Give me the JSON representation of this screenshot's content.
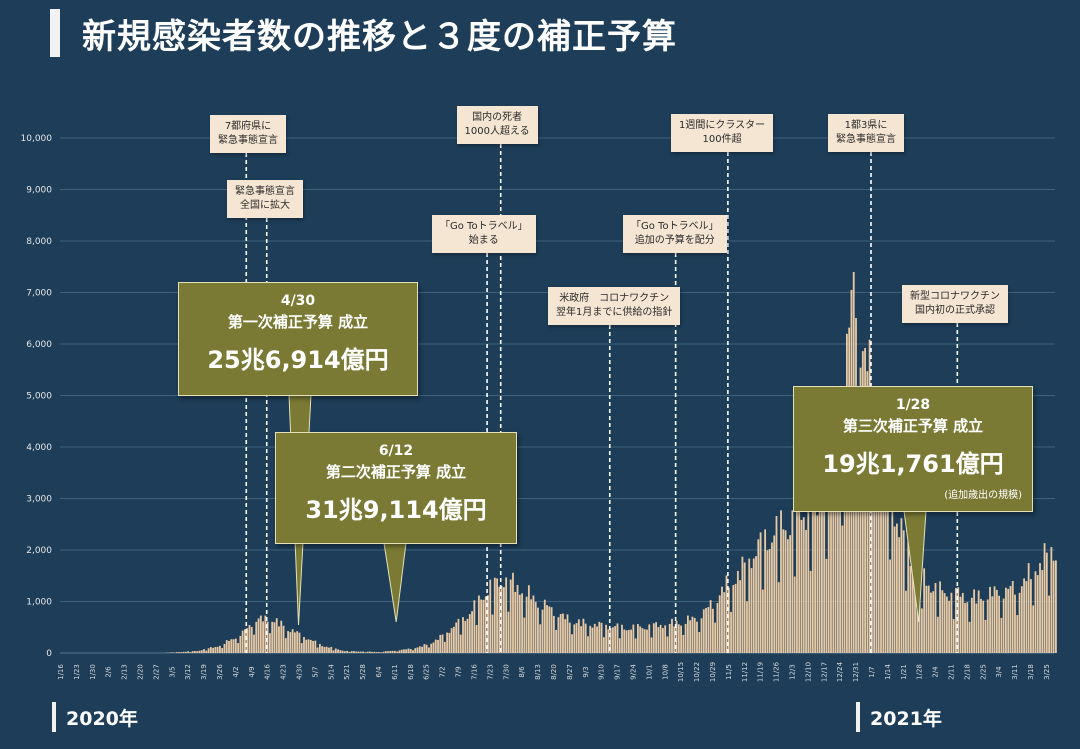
{
  "title": "新規感染者数の推移と３度の補正予算",
  "colors": {
    "background": "#1d3d58",
    "bars": "#e8c9a4",
    "grid": "#4d6e88",
    "note_bg": "#f5e6d3",
    "callout_bg": "#7a7a35"
  },
  "chart_data": {
    "type": "bar",
    "ylim": [
      0,
      10000
    ],
    "yticks": [
      "0",
      "1,000",
      "2,000",
      "3,000",
      "4,000",
      "5,000",
      "6,000",
      "7,000",
      "8,000",
      "9,000",
      "10,000"
    ],
    "xticks": [
      "1/16",
      "1/23",
      "1/30",
      "2/6",
      "2/13",
      "2/20",
      "2/27",
      "3/5",
      "3/12",
      "3/19",
      "3/26",
      "4/2",
      "4/9",
      "4/16",
      "4/23",
      "4/30",
      "5/7",
      "5/14",
      "5/21",
      "5/28",
      "6/4",
      "6/11",
      "6/18",
      "6/25",
      "7/2",
      "7/9",
      "7/16",
      "7/23",
      "7/30",
      "8/6",
      "8/13",
      "8/20",
      "8/27",
      "9/3",
      "9/10",
      "9/17",
      "9/24",
      "10/1",
      "10/8",
      "10/15",
      "10/22",
      "10/29",
      "11/5",
      "11/12",
      "11/19",
      "11/26",
      "12/3",
      "12/10",
      "12/17",
      "12/24",
      "12/31",
      "1/7",
      "1/14",
      "1/21",
      "1/28",
      "2/4",
      "2/11",
      "2/18",
      "2/25",
      "3/4",
      "3/11",
      "3/18",
      "3/25"
    ],
    "start_date": "2020-01-16",
    "daily_cases_anchors": [
      [
        0,
        0
      ],
      [
        45,
        0
      ],
      [
        60,
        40
      ],
      [
        70,
        150
      ],
      [
        80,
        400
      ],
      [
        85,
        650
      ],
      [
        92,
        700
      ],
      [
        98,
        550
      ],
      [
        106,
        350
      ],
      [
        115,
        150
      ],
      [
        125,
        40
      ],
      [
        140,
        20
      ],
      [
        150,
        60
      ],
      [
        158,
        120
      ],
      [
        165,
        250
      ],
      [
        172,
        500
      ],
      [
        180,
        800
      ],
      [
        188,
        1300
      ],
      [
        195,
        1500
      ],
      [
        200,
        1400
      ],
      [
        208,
        1100
      ],
      [
        215,
        900
      ],
      [
        222,
        700
      ],
      [
        230,
        600
      ],
      [
        240,
        550
      ],
      [
        250,
        500
      ],
      [
        260,
        550
      ],
      [
        270,
        600
      ],
      [
        280,
        700
      ],
      [
        285,
        900
      ],
      [
        292,
        1300
      ],
      [
        300,
        1700
      ],
      [
        308,
        2200
      ],
      [
        316,
        2500
      ],
      [
        323,
        2700
      ],
      [
        330,
        2900
      ],
      [
        336,
        3200
      ],
      [
        340,
        3700
      ],
      [
        344,
        4500
      ],
      [
        347,
        6500
      ],
      [
        350,
        7400
      ],
      [
        353,
        6000
      ],
      [
        356,
        5500
      ],
      [
        360,
        4500
      ],
      [
        364,
        3500
      ],
      [
        368,
        2700
      ],
      [
        372,
        2200
      ],
      [
        376,
        1800
      ],
      [
        380,
        1500
      ],
      [
        385,
        1300
      ],
      [
        390,
        1200
      ],
      [
        395,
        1200
      ],
      [
        400,
        1100
      ],
      [
        410,
        1200
      ],
      [
        420,
        1300
      ],
      [
        425,
        1500
      ],
      [
        430,
        1800
      ],
      [
        434,
        2000
      ],
      [
        438,
        2100
      ]
    ],
    "events": [
      {
        "date": "2020-04-07",
        "label": [
          "7都府県に",
          "緊急事態宣言"
        ]
      },
      {
        "date": "2020-04-16",
        "label": [
          "緊急事態宣言",
          "全国に拡大"
        ]
      },
      {
        "date": "2020-07-22",
        "label": [
          "「Go Toトラベル」",
          "始まる"
        ]
      },
      {
        "date": "2020-07-28",
        "label": [
          "国内の死者",
          "1000人超える"
        ]
      },
      {
        "date": "2020-09-14",
        "label": [
          "米政府　コロナワクチン",
          "翌年1月までに供給の指針"
        ]
      },
      {
        "date": "2020-10-13",
        "label": [
          "「Go Toトラベル」",
          "追加の予算を配分"
        ]
      },
      {
        "date": "2020-11-05",
        "label": [
          "1週間にクラスター",
          "100件超"
        ]
      },
      {
        "date": "2021-01-07",
        "label": [
          "1都3県に",
          "緊急事態宣言"
        ]
      },
      {
        "date": "2021-02-14",
        "label": [
          "新型コロナワクチン",
          "国内初の正式承認"
        ]
      }
    ],
    "callouts": [
      {
        "date_label": "4/30",
        "name": "第一次補正予算 成立",
        "amount": "25兆6,914億円"
      },
      {
        "date_label": "6/12",
        "name": "第二次補正予算 成立",
        "amount": "31兆9,114億円"
      },
      {
        "date_label": "1/28",
        "name": "第三次補正予算 成立",
        "amount": "19兆1,761億円",
        "note": "(追加歳出の規模)"
      }
    ]
  },
  "years": [
    "2020年",
    "2021年"
  ]
}
